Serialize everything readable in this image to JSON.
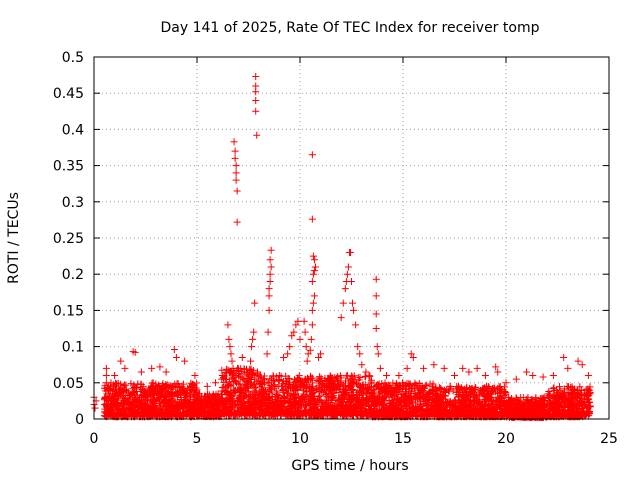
{
  "chart_data": {
    "type": "scatter",
    "title": "Day 141 of 2025, Rate Of TEC Index for receiver tomp",
    "xlabel": "GPS time / hours",
    "ylabel": "ROTI / TECUs",
    "xlim": [
      0,
      25
    ],
    "ylim": [
      0,
      0.5
    ],
    "xticks": [
      "0",
      "5",
      "10",
      "15",
      "20",
      "25"
    ],
    "yticks": [
      "0",
      "0.05",
      "0.1",
      "0.15",
      "0.2",
      "0.25",
      "0.3",
      "0.35",
      "0.4",
      "0.45",
      "0.5"
    ],
    "grid": true,
    "marker": "+",
    "series_color": "#ff0000",
    "points": [
      [
        0.0,
        0.03
      ],
      [
        0.0,
        0.02
      ],
      [
        0.05,
        0.015
      ],
      [
        0.1,
        0.025
      ],
      [
        0.6,
        0.07
      ],
      [
        0.6,
        0.06
      ],
      [
        0.6,
        0.05
      ],
      [
        0.7,
        0.04
      ],
      [
        1.0,
        0.06
      ],
      [
        1.3,
        0.08
      ],
      [
        1.5,
        0.07
      ],
      [
        1.9,
        0.093
      ],
      [
        2.0,
        0.092
      ],
      [
        2.3,
        0.065
      ],
      [
        2.8,
        0.07
      ],
      [
        3.2,
        0.072
      ],
      [
        3.5,
        0.065
      ],
      [
        3.9,
        0.096
      ],
      [
        4.0,
        0.085
      ],
      [
        4.4,
        0.08
      ],
      [
        4.9,
        0.06
      ],
      [
        5.5,
        0.045
      ],
      [
        5.9,
        0.05
      ],
      [
        6.2,
        0.055
      ],
      [
        6.5,
        0.13
      ],
      [
        6.55,
        0.11
      ],
      [
        6.6,
        0.1
      ],
      [
        6.65,
        0.09
      ],
      [
        6.7,
        0.08
      ],
      [
        6.75,
        0.07
      ],
      [
        6.8,
        0.065
      ],
      [
        6.9,
        0.06
      ],
      [
        7.0,
        0.07
      ],
      [
        7.2,
        0.085
      ],
      [
        6.8,
        0.383
      ],
      [
        6.85,
        0.37
      ],
      [
        6.85,
        0.36
      ],
      [
        6.9,
        0.35
      ],
      [
        6.9,
        0.34
      ],
      [
        6.9,
        0.33
      ],
      [
        6.95,
        0.315
      ],
      [
        6.95,
        0.272
      ],
      [
        7.6,
        0.08
      ],
      [
        7.65,
        0.1
      ],
      [
        7.7,
        0.11
      ],
      [
        7.75,
        0.12
      ],
      [
        7.8,
        0.16
      ],
      [
        7.85,
        0.473
      ],
      [
        7.85,
        0.46
      ],
      [
        7.85,
        0.452
      ],
      [
        7.85,
        0.44
      ],
      [
        7.85,
        0.425
      ],
      [
        7.9,
        0.392
      ],
      [
        8.4,
        0.09
      ],
      [
        8.45,
        0.12
      ],
      [
        8.5,
        0.15
      ],
      [
        8.5,
        0.17
      ],
      [
        8.5,
        0.18
      ],
      [
        8.55,
        0.19
      ],
      [
        8.55,
        0.2
      ],
      [
        8.6,
        0.21
      ],
      [
        8.55,
        0.22
      ],
      [
        8.6,
        0.233
      ],
      [
        9.0,
        0.06
      ],
      [
        9.2,
        0.085
      ],
      [
        9.4,
        0.09
      ],
      [
        9.5,
        0.1
      ],
      [
        9.6,
        0.115
      ],
      [
        9.7,
        0.12
      ],
      [
        9.8,
        0.13
      ],
      [
        9.9,
        0.135
      ],
      [
        10.0,
        0.11
      ],
      [
        10.2,
        0.135
      ],
      [
        10.25,
        0.12
      ],
      [
        10.3,
        0.1
      ],
      [
        10.35,
        0.08
      ],
      [
        10.4,
        0.09
      ],
      [
        10.5,
        0.095
      ],
      [
        10.55,
        0.11
      ],
      [
        10.6,
        0.13
      ],
      [
        10.6,
        0.15
      ],
      [
        10.65,
        0.16
      ],
      [
        10.7,
        0.17
      ],
      [
        10.6,
        0.19
      ],
      [
        10.65,
        0.2
      ],
      [
        10.7,
        0.205
      ],
      [
        10.75,
        0.21
      ],
      [
        10.7,
        0.22
      ],
      [
        10.65,
        0.225
      ],
      [
        10.6,
        0.276
      ],
      [
        10.6,
        0.365
      ],
      [
        10.9,
        0.085
      ],
      [
        11.0,
        0.09
      ],
      [
        12.0,
        0.14
      ],
      [
        12.1,
        0.16
      ],
      [
        12.2,
        0.18
      ],
      [
        12.25,
        0.19
      ],
      [
        12.3,
        0.2
      ],
      [
        12.35,
        0.21
      ],
      [
        12.4,
        0.23
      ],
      [
        12.45,
        0.23
      ],
      [
        12.5,
        0.19
      ],
      [
        12.55,
        0.16
      ],
      [
        12.6,
        0.15
      ],
      [
        12.7,
        0.13
      ],
      [
        12.8,
        0.1
      ],
      [
        12.9,
        0.09
      ],
      [
        13.0,
        0.075
      ],
      [
        13.2,
        0.065
      ],
      [
        13.7,
        0.193
      ],
      [
        13.7,
        0.17
      ],
      [
        13.7,
        0.145
      ],
      [
        13.7,
        0.125
      ],
      [
        13.75,
        0.1
      ],
      [
        13.8,
        0.09
      ],
      [
        13.9,
        0.07
      ],
      [
        14.2,
        0.06
      ],
      [
        14.8,
        0.06
      ],
      [
        15.2,
        0.07
      ],
      [
        15.4,
        0.09
      ],
      [
        15.5,
        0.085
      ],
      [
        16.0,
        0.07
      ],
      [
        16.5,
        0.075
      ],
      [
        17.0,
        0.07
      ],
      [
        17.5,
        0.06
      ],
      [
        17.9,
        0.07
      ],
      [
        18.2,
        0.065
      ],
      [
        18.6,
        0.07
      ],
      [
        19.0,
        0.06
      ],
      [
        19.5,
        0.072
      ],
      [
        19.6,
        0.065
      ],
      [
        20.0,
        0.05
      ],
      [
        20.5,
        0.055
      ],
      [
        21.0,
        0.065
      ],
      [
        21.3,
        0.06
      ],
      [
        21.8,
        0.058
      ],
      [
        22.3,
        0.06
      ],
      [
        22.8,
        0.085
      ],
      [
        23.0,
        0.07
      ],
      [
        23.5,
        0.08
      ],
      [
        23.7,
        0.075
      ],
      [
        24.0,
        0.06
      ]
    ],
    "dense_band": [
      {
        "from": 0.5,
        "to": 5.0,
        "y_min": 0.003,
        "y_max": 0.05
      },
      {
        "from": 5.0,
        "to": 6.2,
        "y_min": 0.003,
        "y_max": 0.035
      },
      {
        "from": 6.2,
        "to": 8.0,
        "y_min": 0.005,
        "y_max": 0.07
      },
      {
        "from": 8.0,
        "to": 13.5,
        "y_min": 0.005,
        "y_max": 0.06
      },
      {
        "from": 13.5,
        "to": 16.5,
        "y_min": 0.003,
        "y_max": 0.05
      },
      {
        "from": 16.5,
        "to": 20.0,
        "y_min": 0.003,
        "y_max": 0.045
      },
      {
        "from": 20.0,
        "to": 22.0,
        "y_min": 0.002,
        "y_max": 0.03
      },
      {
        "from": 22.0,
        "to": 24.1,
        "y_min": 0.003,
        "y_max": 0.045
      }
    ]
  }
}
